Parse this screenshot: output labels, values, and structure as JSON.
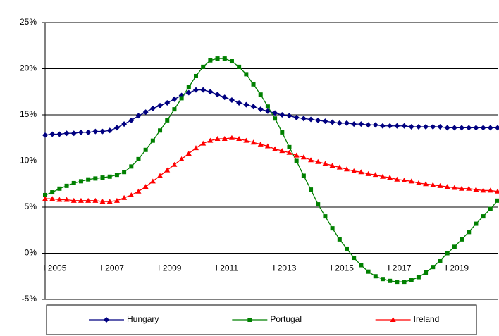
{
  "chart_data": {
    "type": "line",
    "categories": [
      "I 2005",
      null,
      null,
      null,
      null,
      null,
      null,
      null,
      "I 2007",
      null,
      null,
      null,
      null,
      null,
      null,
      null,
      "I 2009",
      null,
      null,
      null,
      null,
      null,
      null,
      null,
      "I 2011",
      null,
      null,
      null,
      null,
      null,
      null,
      null,
      "I 2013",
      null,
      null,
      null,
      null,
      null,
      null,
      null,
      "I 2015",
      null,
      null,
      null,
      null,
      null,
      null,
      null,
      "I 2017",
      null,
      null,
      null,
      null,
      null,
      null,
      null,
      "I 2019",
      null,
      null,
      null,
      null,
      null,
      null,
      null
    ],
    "series": [
      {
        "name": "Hungary",
        "color": "#000080",
        "marker": "diamond",
        "values": [
          12.8,
          12.9,
          12.9,
          13.0,
          13.0,
          13.1,
          13.1,
          13.2,
          13.2,
          13.3,
          13.6,
          14.0,
          14.4,
          14.9,
          15.3,
          15.7,
          16.0,
          16.3,
          16.7,
          17.1,
          17.4,
          17.7,
          17.7,
          17.5,
          17.2,
          16.9,
          16.6,
          16.3,
          16.1,
          15.9,
          15.6,
          15.4,
          15.2,
          15.0,
          14.9,
          14.7,
          14.6,
          14.5,
          14.4,
          14.3,
          14.2,
          14.1,
          14.1,
          14.0,
          14.0,
          13.9,
          13.9,
          13.8,
          13.8,
          13.8,
          13.8,
          13.7,
          13.7,
          13.7,
          13.7,
          13.7,
          13.6,
          13.6,
          13.6,
          13.6,
          13.6,
          13.6,
          13.6,
          13.6
        ]
      },
      {
        "name": "Portugal",
        "color": "#008000",
        "marker": "square",
        "values": [
          6.3,
          6.6,
          7.0,
          7.3,
          7.6,
          7.8,
          8.0,
          8.1,
          8.2,
          8.3,
          8.5,
          8.8,
          9.4,
          10.2,
          11.2,
          12.2,
          13.3,
          14.4,
          15.6,
          16.8,
          18.0,
          19.2,
          20.2,
          20.9,
          21.1,
          21.1,
          20.8,
          20.2,
          19.4,
          18.3,
          17.2,
          15.9,
          14.6,
          13.1,
          11.5,
          10.0,
          8.4,
          6.9,
          5.3,
          4.0,
          2.7,
          1.5,
          0.5,
          -0.5,
          -1.3,
          -2.0,
          -2.5,
          -2.8,
          -3.0,
          -3.1,
          -3.1,
          -2.9,
          -2.6,
          -2.1,
          -1.5,
          -0.8,
          0.0,
          0.7,
          1.5,
          2.3,
          3.2,
          4.0,
          4.8,
          5.7
        ]
      },
      {
        "name": "Ireland",
        "color": "#ff0000",
        "marker": "triangle",
        "values": [
          5.9,
          5.9,
          5.8,
          5.8,
          5.7,
          5.7,
          5.7,
          5.7,
          5.6,
          5.6,
          5.7,
          6.0,
          6.3,
          6.7,
          7.2,
          7.8,
          8.4,
          9.0,
          9.6,
          10.2,
          10.8,
          11.4,
          11.9,
          12.2,
          12.4,
          12.4,
          12.5,
          12.4,
          12.2,
          12.0,
          11.8,
          11.6,
          11.3,
          11.1,
          10.9,
          10.6,
          10.4,
          10.1,
          9.9,
          9.7,
          9.5,
          9.3,
          9.1,
          8.9,
          8.8,
          8.6,
          8.5,
          8.3,
          8.2,
          8.0,
          7.9,
          7.8,
          7.6,
          7.5,
          7.4,
          7.3,
          7.2,
          7.1,
          7.0,
          7.0,
          6.9,
          6.8,
          6.8,
          6.7
        ]
      }
    ],
    "ylim": [
      -5,
      25
    ],
    "yticks": [
      {
        "value": -5,
        "label": "-5%"
      },
      {
        "value": 0,
        "label": "0%"
      },
      {
        "value": 5,
        "label": "5%"
      },
      {
        "value": 10,
        "label": "10%"
      },
      {
        "value": 15,
        "label": "15%"
      },
      {
        "value": 20,
        "label": "20%"
      },
      {
        "value": 25,
        "label": "25%"
      }
    ],
    "grid": true,
    "legend": "bottom"
  }
}
